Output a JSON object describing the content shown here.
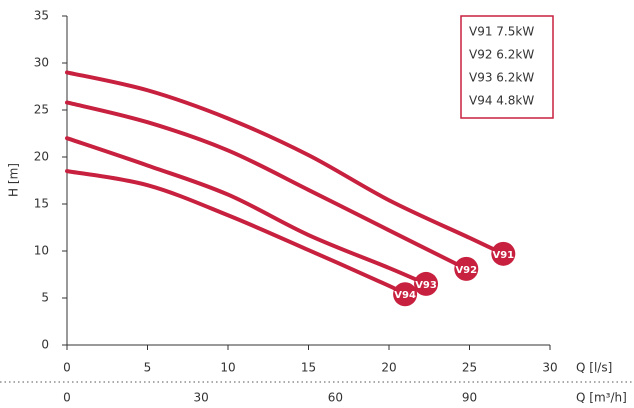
{
  "chart_data": {
    "type": "line",
    "ylabel": "H [m]",
    "xlabel": "Q [l/s]",
    "x2label": "Q [m³/h]",
    "xlim": [
      0,
      30
    ],
    "xticks": [
      0,
      5,
      10,
      15,
      20,
      25,
      30
    ],
    "x2lim": [
      0,
      108
    ],
    "x2ticks": [
      0,
      30,
      60,
      90
    ],
    "ylim": [
      0,
      35
    ],
    "yticks": [
      0,
      5,
      10,
      15,
      20,
      25,
      30,
      35
    ],
    "grid": false,
    "legend": "upper right",
    "series": [
      {
        "name": "V91 7.5kW",
        "end_label": "V91",
        "color": "#c8203f",
        "x": [
          0,
          5,
          10,
          15,
          20,
          25,
          27.1
        ],
        "values": [
          29,
          27.1,
          24.1,
          20.2,
          15.4,
          11.4,
          9.7
        ]
      },
      {
        "name": "V92 6.2kW",
        "end_label": "V92",
        "color": "#c8203f",
        "x": [
          0,
          5,
          10,
          15,
          20,
          24.8
        ],
        "values": [
          25.8,
          23.7,
          20.7,
          16.5,
          12.2,
          8.1
        ]
      },
      {
        "name": "V93 6.2kW",
        "end_label": "V93",
        "color": "#c8203f",
        "x": [
          0,
          5,
          10,
          15,
          20,
          22.3
        ],
        "values": [
          22,
          19.1,
          16,
          11.7,
          8.2,
          6.5
        ]
      },
      {
        "name": "V94 4.8kW",
        "end_label": "V94",
        "color": "#c8203f",
        "x": [
          0,
          5,
          10,
          15,
          20,
          21
        ],
        "values": [
          18.5,
          17,
          13.8,
          10.1,
          6.3,
          5.4
        ]
      }
    ]
  }
}
